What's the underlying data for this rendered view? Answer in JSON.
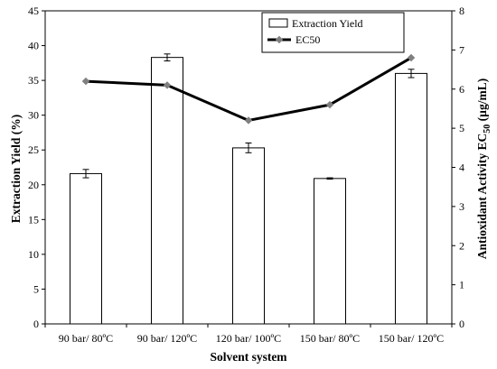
{
  "chart_data": {
    "type": "bar",
    "categories": [
      "90 bar/ 80ºC",
      "90 bar/ 120ºC",
      "120 bar/ 100ºC",
      "150 bar/ 80ºC",
      "150 bar/ 120ºC"
    ],
    "xlabel": "Solvent system",
    "ylabel": "Extraction Yield (%)",
    "y2label_prefix": "Antioxidant Activity EC",
    "y2label_sub": "50",
    "y2label_suffix": " (µg/mL)",
    "ylim": [
      0,
      45
    ],
    "yticks": [
      0,
      5,
      10,
      15,
      20,
      25,
      30,
      35,
      40,
      45
    ],
    "y2lim": [
      0,
      8
    ],
    "y2ticks": [
      0,
      1,
      2,
      3,
      4,
      5,
      6,
      7,
      8
    ],
    "grid": false,
    "legend_position": "top-right",
    "series": [
      {
        "name": "Extraction Yield",
        "type": "bar",
        "axis": "left",
        "values": [
          21.6,
          38.3,
          25.3,
          20.9,
          36.0
        ],
        "errors": [
          0.6,
          0.5,
          0.7,
          0.1,
          0.6
        ],
        "fill": "#ffffff",
        "stroke": "#000000"
      },
      {
        "name": "EC50",
        "type": "line",
        "axis": "right",
        "values": [
          6.2,
          6.1,
          5.2,
          5.6,
          6.8
        ],
        "color": "#000000",
        "marker_color": "#808080"
      }
    ]
  }
}
